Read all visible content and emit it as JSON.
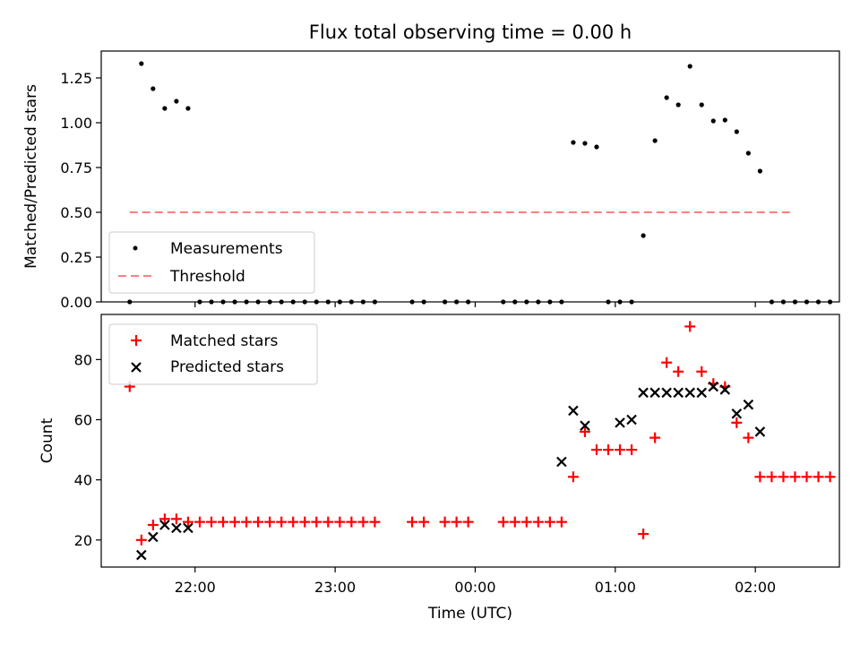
{
  "title": "Flux total observing time = 0.00 h",
  "xlabel": "Time (UTC)",
  "colors": {
    "measurement": "#000000",
    "threshold": "#ff7f7f",
    "matched": "#ff0000",
    "predicted": "#000000"
  },
  "chart_data": [
    {
      "type": "scatter",
      "title": "Flux total observing time = 0.00 h",
      "ylabel": "Matched/Predicted stars",
      "xlabel": "",
      "xlim": [
        21.33,
        2.6
      ],
      "ylim": [
        0,
        1.4
      ],
      "yticks": [
        "0.00",
        "0.25",
        "0.50",
        "0.75",
        "1.00",
        "1.25"
      ],
      "xticks": [
        "22:00",
        "23:00",
        "00:00",
        "01:00",
        "02:00"
      ],
      "legend": {
        "position": "lower-left",
        "entries": [
          "Measurements",
          "Threshold"
        ]
      },
      "threshold": {
        "name": "Threshold",
        "y": 0.5,
        "x": [
          "21:32",
          "02:16"
        ]
      },
      "series": [
        {
          "name": "Measurements",
          "x": [
            "21:32",
            "21:37",
            "21:42",
            "21:47",
            "21:52",
            "21:57",
            "22:02",
            "22:07",
            "22:12",
            "22:17",
            "22:22",
            "22:27",
            "22:32",
            "22:37",
            "22:42",
            "22:47",
            "22:52",
            "22:57",
            "23:02",
            "23:07",
            "23:12",
            "23:17",
            "23:33",
            "23:38",
            "23:47",
            "23:52",
            "23:57",
            "00:12",
            "00:17",
            "00:22",
            "00:27",
            "00:32",
            "00:37",
            "00:42",
            "00:47",
            "00:52",
            "00:57",
            "01:02",
            "01:07",
            "01:12",
            "01:17",
            "01:22",
            "01:27",
            "01:32",
            "01:37",
            "01:42",
            "01:47",
            "01:52",
            "01:57",
            "02:02",
            "02:07",
            "02:12",
            "02:17",
            "02:22",
            "02:27",
            "02:32"
          ],
          "y": [
            0.0,
            1.33,
            1.19,
            1.08,
            1.12,
            1.08,
            0.0,
            0.0,
            0.0,
            0.0,
            0.0,
            0.0,
            0.0,
            0.0,
            0.0,
            0.0,
            0.0,
            0.0,
            0.0,
            0.0,
            0.0,
            0.0,
            0.0,
            0.0,
            0.0,
            0.0,
            0.0,
            0.0,
            0.0,
            0.0,
            0.0,
            0.0,
            0.0,
            0.89,
            0.885,
            0.865,
            0.0,
            0.0,
            0.0,
            0.37,
            0.9,
            1.14,
            1.1,
            1.315,
            1.1,
            1.01,
            1.015,
            0.95,
            0.83,
            0.73,
            0.0,
            0.0,
            0.0,
            0.0,
            0.0,
            0.0
          ]
        }
      ]
    },
    {
      "type": "scatter",
      "ylabel": "Count",
      "xlabel": "Time (UTC)",
      "xlim": [
        21.33,
        2.6
      ],
      "ylim": [
        11,
        95
      ],
      "yticks": [
        "20",
        "40",
        "60",
        "80"
      ],
      "xticks": [
        "22:00",
        "23:00",
        "00:00",
        "01:00",
        "02:00"
      ],
      "legend": {
        "position": "top-left",
        "entries": [
          "Matched stars",
          "Predicted stars"
        ]
      },
      "series": [
        {
          "name": "Matched stars",
          "marker": "+",
          "x": [
            "21:32",
            "21:37",
            "21:42",
            "21:47",
            "21:52",
            "21:57",
            "22:02",
            "22:07",
            "22:12",
            "22:17",
            "22:22",
            "22:27",
            "22:32",
            "22:37",
            "22:42",
            "22:47",
            "22:52",
            "22:57",
            "23:02",
            "23:07",
            "23:12",
            "23:17",
            "23:33",
            "23:38",
            "23:47",
            "23:52",
            "23:57",
            "00:12",
            "00:17",
            "00:22",
            "00:27",
            "00:32",
            "00:37",
            "00:42",
            "00:47",
            "00:52",
            "00:57",
            "01:02",
            "01:07",
            "01:12",
            "01:17",
            "01:22",
            "01:27",
            "01:32",
            "01:37",
            "01:42",
            "01:47",
            "01:52",
            "01:57",
            "02:02",
            "02:07",
            "02:12",
            "02:17",
            "02:22",
            "02:27",
            "02:32"
          ],
          "y": [
            71,
            20,
            25,
            27,
            27,
            26,
            26,
            26,
            26,
            26,
            26,
            26,
            26,
            26,
            26,
            26,
            26,
            26,
            26,
            26,
            26,
            26,
            26,
            26,
            26,
            26,
            26,
            26,
            26,
            26,
            26,
            26,
            26,
            41,
            56,
            50,
            50,
            50,
            50,
            22,
            54,
            79,
            76,
            91,
            76,
            72,
            71,
            59,
            54,
            41,
            41,
            41,
            41,
            41,
            41,
            41
          ]
        },
        {
          "name": "Predicted stars",
          "marker": "x",
          "x": [
            "21:37",
            "21:42",
            "21:47",
            "21:52",
            "21:57",
            "00:37",
            "00:42",
            "00:47",
            "01:02",
            "01:07",
            "01:12",
            "01:17",
            "01:22",
            "01:27",
            "01:32",
            "01:37",
            "01:42",
            "01:47",
            "01:52",
            "01:57",
            "02:02"
          ],
          "y": [
            15,
            21,
            25,
            24,
            24,
            46,
            63,
            58,
            59,
            60,
            69,
            69,
            69,
            69,
            69,
            69,
            71,
            70,
            62,
            65,
            56
          ]
        }
      ]
    }
  ]
}
